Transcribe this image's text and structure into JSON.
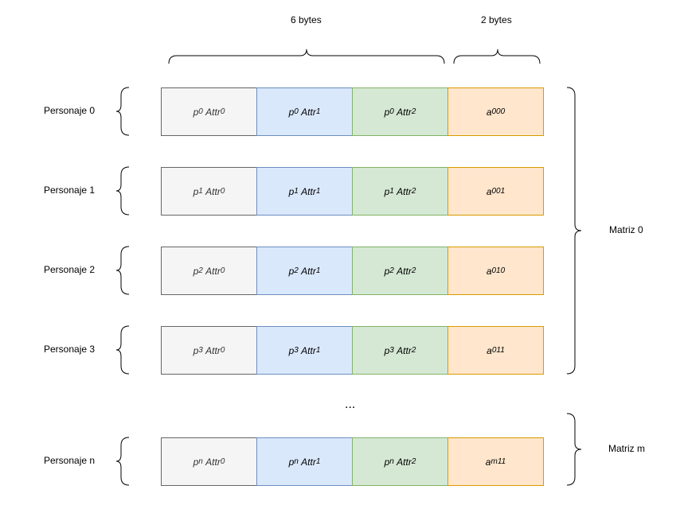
{
  "size_labels": {
    "six": "6 bytes",
    "two": "2 bytes"
  },
  "rows": [
    {
      "name": "Personaje 0",
      "p": "0",
      "a": "000"
    },
    {
      "name": "Personaje 1",
      "p": "1",
      "a": "001"
    },
    {
      "name": "Personaje 2",
      "p": "2",
      "a": "010"
    },
    {
      "name": "Personaje 3",
      "p": "3",
      "a": "011"
    },
    {
      "name": "Personaje n",
      "p": "n",
      "a": "m11"
    }
  ],
  "attr_text": "Attr",
  "cell_prefix_p": "p",
  "cell_prefix_a": "a",
  "ellipsis": "...",
  "matrix_labels": {
    "m0": "Matriz 0",
    "mm": "Matriz m"
  },
  "colors": {
    "attr0_fill": "#f5f5f5",
    "attr1_fill": "#dae8fc",
    "attr2_fill": "#d5e8d4",
    "code_fill": "#ffe6cc"
  }
}
